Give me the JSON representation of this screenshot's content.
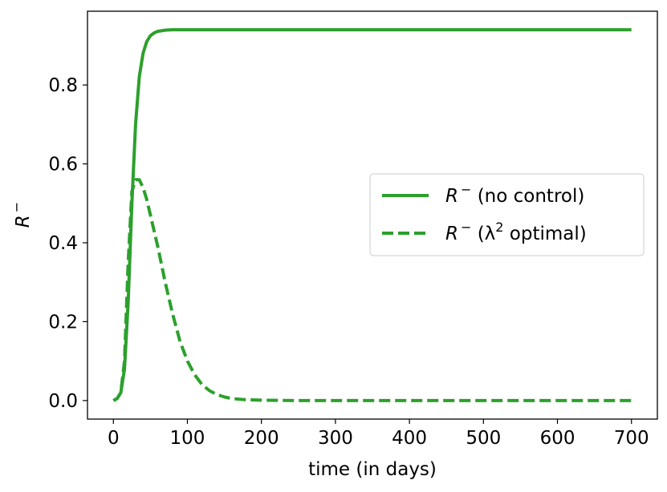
{
  "chart_data": {
    "type": "line",
    "xlabel": "time (in days)",
    "ylabel": "R",
    "ylabel_sup": "−",
    "xlim": [
      -35,
      735
    ],
    "ylim": [
      -0.047,
      0.987
    ],
    "xticks": [
      0,
      100,
      200,
      300,
      400,
      500,
      600,
      700
    ],
    "xtick_labels": [
      "0",
      "100",
      "200",
      "300",
      "400",
      "500",
      "600",
      "700"
    ],
    "yticks": [
      0.0,
      0.2,
      0.4,
      0.6,
      0.8
    ],
    "ytick_labels": [
      "0.0",
      "0.2",
      "0.4",
      "0.6",
      "0.8"
    ],
    "grid": false,
    "legend_position": "center-right",
    "color": "#2ca02c",
    "series": [
      {
        "name_base": "R",
        "name_sup": "−",
        "name_tail": " (no control)",
        "style": "solid",
        "x": [
          0,
          5,
          10,
          15,
          20,
          25,
          30,
          35,
          40,
          45,
          50,
          55,
          60,
          70,
          80,
          100,
          150,
          200,
          300,
          400,
          500,
          600,
          700
        ],
        "y": [
          0.0,
          0.005,
          0.02,
          0.08,
          0.25,
          0.5,
          0.7,
          0.82,
          0.88,
          0.91,
          0.925,
          0.932,
          0.936,
          0.939,
          0.94,
          0.94,
          0.94,
          0.94,
          0.94,
          0.94,
          0.94,
          0.94,
          0.94
        ]
      },
      {
        "name_base": "R",
        "name_sup": "−",
        "name_open": " (λ",
        "name_sup2": "2",
        "name_tail": " optimal)",
        "style": "dashed",
        "x": [
          0,
          5,
          10,
          15,
          20,
          25,
          30,
          35,
          40,
          45,
          50,
          60,
          70,
          80,
          90,
          100,
          110,
          120,
          130,
          140,
          150,
          160,
          180,
          200,
          250,
          300,
          400,
          500,
          600,
          700
        ],
        "y": [
          0.0,
          0.005,
          0.02,
          0.1,
          0.35,
          0.53,
          0.56,
          0.56,
          0.54,
          0.51,
          0.47,
          0.39,
          0.3,
          0.22,
          0.15,
          0.1,
          0.065,
          0.04,
          0.025,
          0.015,
          0.009,
          0.005,
          0.002,
          0.001,
          0.0,
          0.0,
          0.0,
          0.0,
          0.0,
          0.0
        ]
      }
    ]
  }
}
